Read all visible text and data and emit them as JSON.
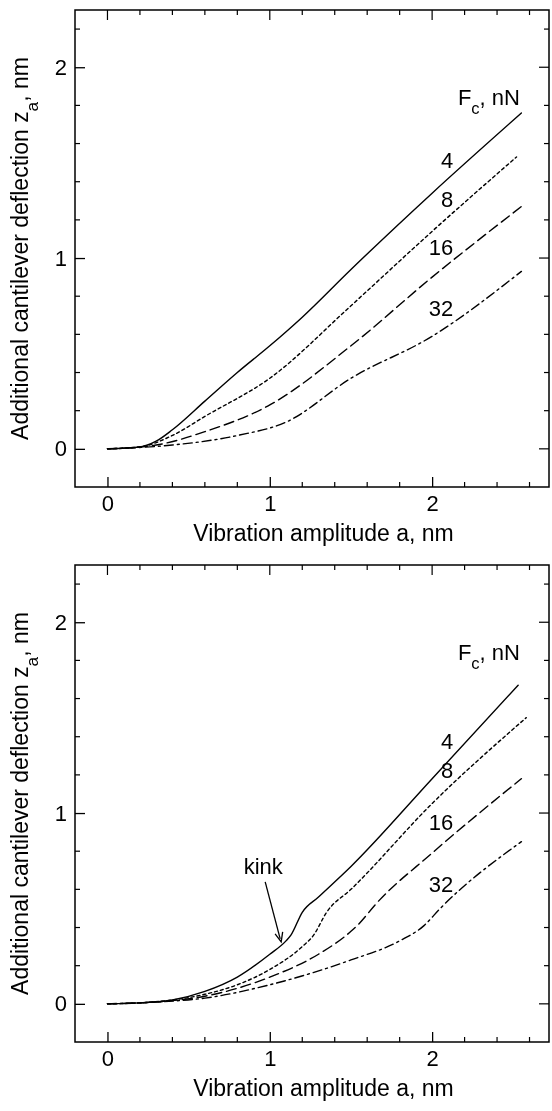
{
  "chart_data": [
    {
      "type": "line",
      "xlabel": "Vibration amplitude a, nm",
      "ylabel": "Additional cantilever deflection z$_{a}$, nm",
      "legend_title": "F$_{c}$, nN",
      "xlim": [
        -0.2,
        2.72
      ],
      "ylim": [
        -0.2,
        2.3
      ],
      "xticks": [
        0,
        1,
        2
      ],
      "yticks": [
        0,
        1,
        2
      ],
      "series": [
        {
          "name": "4",
          "color": "#000000",
          "line_style": "solid",
          "x": [
            0,
            0.2,
            0.3,
            0.4,
            0.6,
            0.8,
            1.0,
            1.2,
            1.5,
            2.0,
            2.55
          ],
          "values": [
            0,
            0.01,
            0.04,
            0.1,
            0.25,
            0.4,
            0.54,
            0.69,
            0.94,
            1.34,
            1.76
          ]
        },
        {
          "name": "8",
          "color": "#000000",
          "line_style": "dotted",
          "x": [
            0,
            0.2,
            0.4,
            0.6,
            1.0,
            1.5,
            2.0,
            2.52
          ],
          "values": [
            0,
            0.01,
            0.07,
            0.17,
            0.37,
            0.75,
            1.14,
            1.53
          ]
        },
        {
          "name": "16",
          "color": "#000000",
          "line_style": "dashed",
          "x": [
            0,
            0.3,
            0.6,
            1.0,
            1.5,
            2.0,
            2.55
          ],
          "values": [
            0,
            0.02,
            0.09,
            0.23,
            0.54,
            0.9,
            1.27
          ]
        },
        {
          "name": "32",
          "color": "#000000",
          "line_style": "dashdot",
          "x": [
            0,
            0.4,
            0.8,
            1.1,
            1.5,
            2.0,
            2.55
          ],
          "values": [
            0,
            0.02,
            0.07,
            0.14,
            0.37,
            0.59,
            0.93
          ]
        }
      ]
    },
    {
      "type": "line",
      "xlabel": "Vibration amplitude a, nm",
      "ylabel": "Additional cantilever deflection z$_{a}$, nm",
      "legend_title": "F$_{c}$, nN",
      "xlim": [
        -0.2,
        2.72
      ],
      "ylim": [
        -0.2,
        2.3
      ],
      "xticks": [
        0,
        1,
        2
      ],
      "yticks": [
        0,
        1,
        2
      ],
      "annotations": [
        "kink"
      ],
      "series": [
        {
          "name": "4",
          "color": "#000000",
          "line_style": "solid",
          "x": [
            0,
            0.2,
            0.4,
            0.6,
            0.8,
            1.0,
            1.1,
            1.13,
            1.2,
            1.3,
            1.5,
            2.0,
            2.53
          ],
          "values": [
            0,
            0.005,
            0.02,
            0.065,
            0.14,
            0.26,
            0.33,
            0.36,
            0.48,
            0.56,
            0.72,
            1.18,
            1.67
          ]
        },
        {
          "name": "8",
          "color": "#000000",
          "line_style": "dotted",
          "x": [
            0,
            0.2,
            0.4,
            0.6,
            0.8,
            1.0,
            1.2,
            1.27,
            1.35,
            1.5,
            2.0,
            2.58
          ],
          "values": [
            0,
            0.005,
            0.02,
            0.05,
            0.1,
            0.18,
            0.3,
            0.36,
            0.48,
            0.6,
            1.05,
            1.5
          ]
        },
        {
          "name": "16",
          "color": "#000000",
          "line_style": "dashed",
          "x": [
            0,
            0.3,
            0.6,
            1.0,
            1.3,
            1.5,
            1.55,
            1.65,
            2.0,
            2.55
          ],
          "values": [
            0,
            0.01,
            0.04,
            0.14,
            0.26,
            0.38,
            0.42,
            0.52,
            0.79,
            1.18
          ]
        },
        {
          "name": "32",
          "color": "#000000",
          "line_style": "dashdot",
          "x": [
            0,
            0.3,
            0.6,
            1.0,
            1.5,
            1.8,
            1.95,
            2.05,
            2.55
          ],
          "values": [
            0,
            0.01,
            0.03,
            0.1,
            0.23,
            0.33,
            0.41,
            0.5,
            0.85
          ]
        }
      ]
    }
  ]
}
